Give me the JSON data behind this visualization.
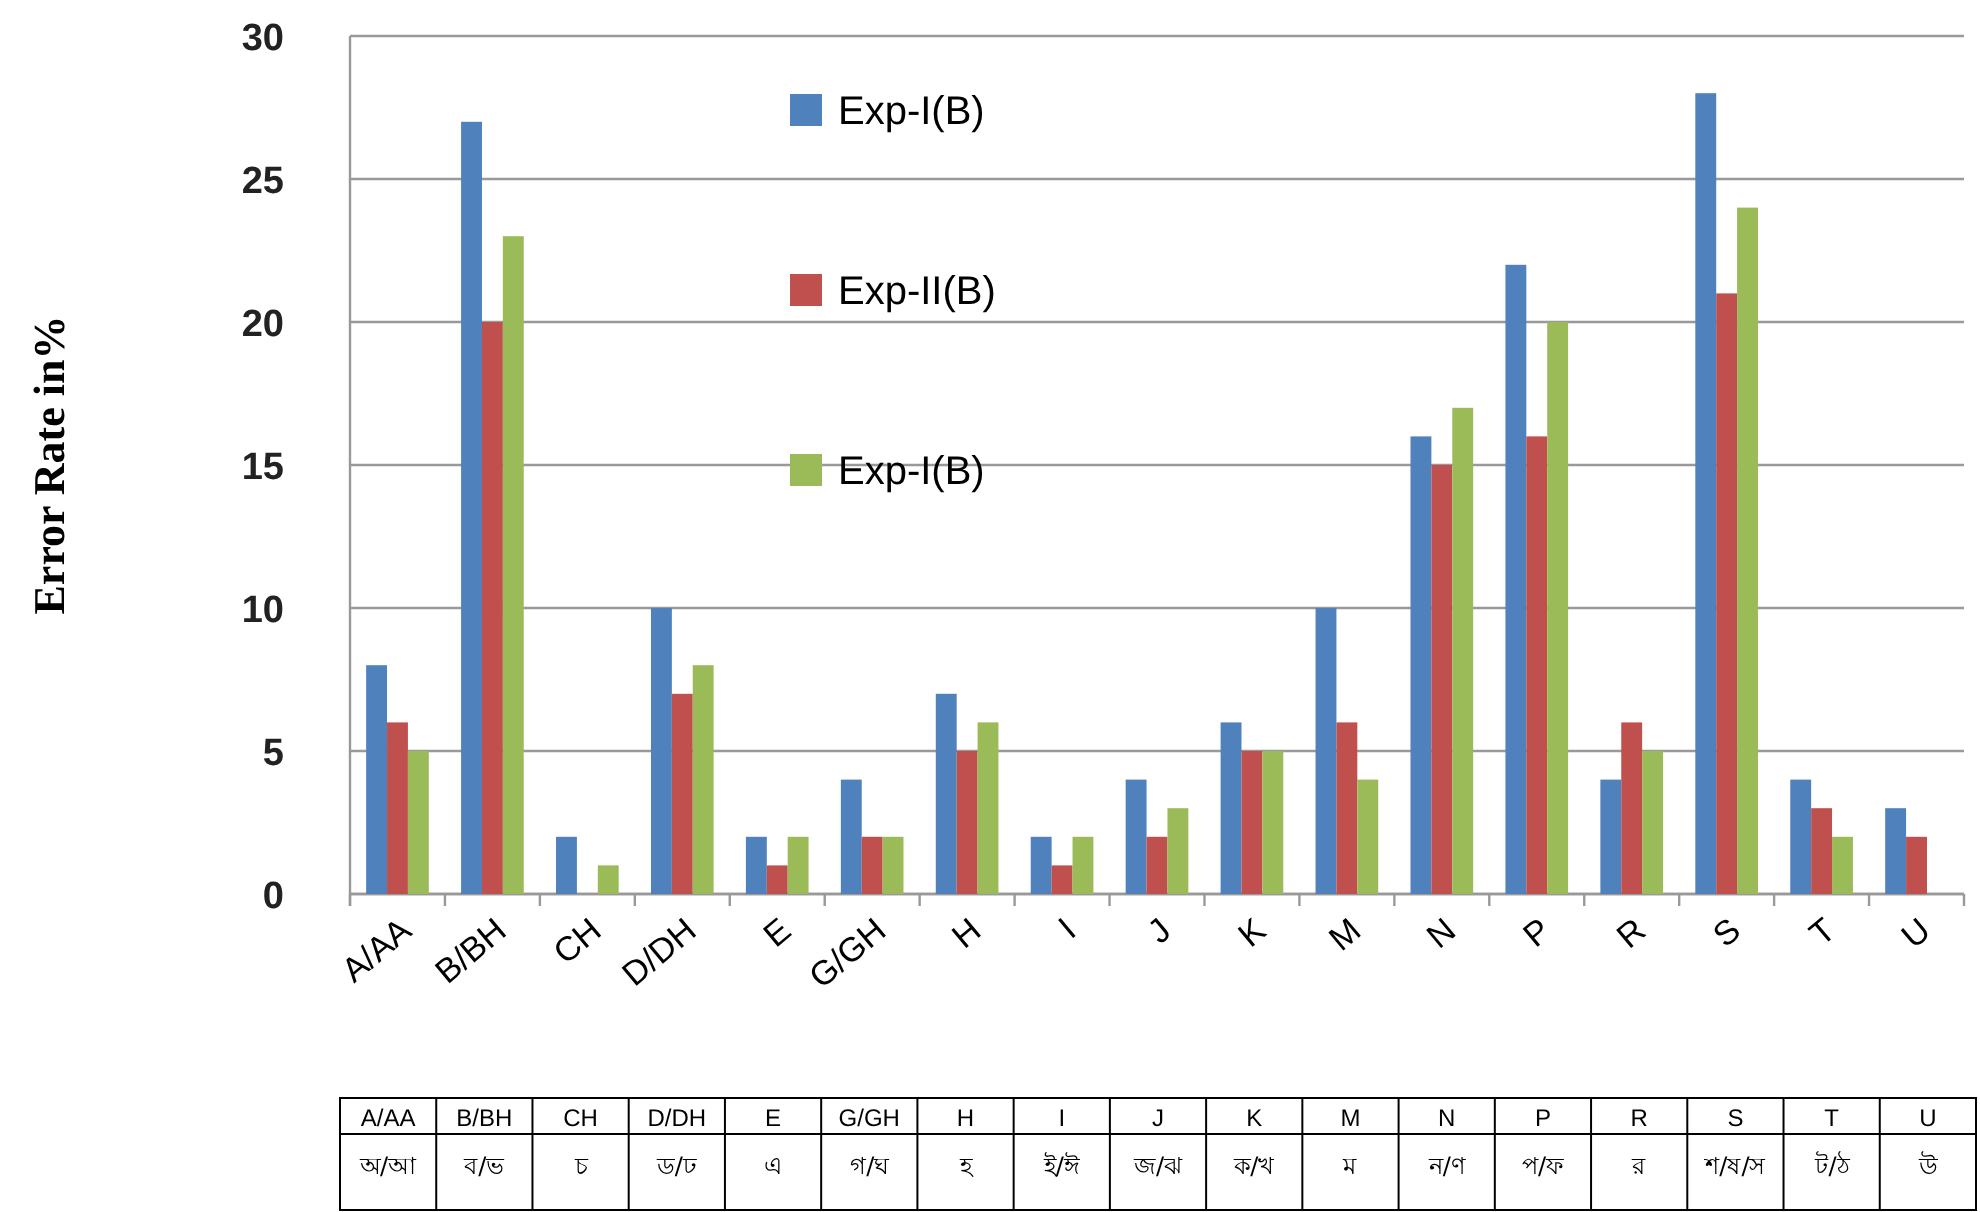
{
  "chart_data": {
    "type": "bar",
    "ylabel": "Error Rate in%",
    "categories": [
      "A/AA",
      "B/BH",
      "CH",
      "D/DH",
      "E",
      "G/GH",
      "H",
      "I",
      "J",
      "K",
      "M",
      "N",
      "P",
      "R",
      "S",
      "T",
      "U"
    ],
    "series": [
      {
        "name": "Exp-I(B)",
        "color": "#4f81bd",
        "values": [
          8,
          27,
          2,
          10,
          2,
          4,
          7,
          2,
          4,
          6,
          10,
          16,
          22,
          4,
          28,
          4,
          3
        ]
      },
      {
        "name": "Exp-II(B)",
        "color": "#c0504d",
        "values": [
          6,
          20,
          0,
          7,
          1,
          2,
          5,
          1,
          2,
          5,
          6,
          15,
          16,
          6,
          21,
          3,
          2
        ]
      },
      {
        "name": "Exp-I(B)",
        "color": "#9bbb59",
        "values": [
          5,
          23,
          1,
          8,
          2,
          2,
          6,
          2,
          3,
          5,
          4,
          17,
          20,
          5,
          24,
          2,
          null
        ]
      }
    ],
    "ylim": [
      0,
      30
    ],
    "yticks": [
      0,
      5,
      10,
      15,
      20,
      25,
      30
    ],
    "grid": "y",
    "legend": "top",
    "annotations": [
      "অ/আ",
      "ব/ভ",
      "চ",
      "ড/ঢ",
      "এ",
      "গ/ঘ",
      "হ",
      "ই/ঈ",
      "জ/ঝ",
      "ক/খ",
      "ম",
      "ন/ণ",
      "প/ফ",
      "র",
      "শ/ষ/স",
      "ট/ঠ",
      "উ"
    ]
  }
}
